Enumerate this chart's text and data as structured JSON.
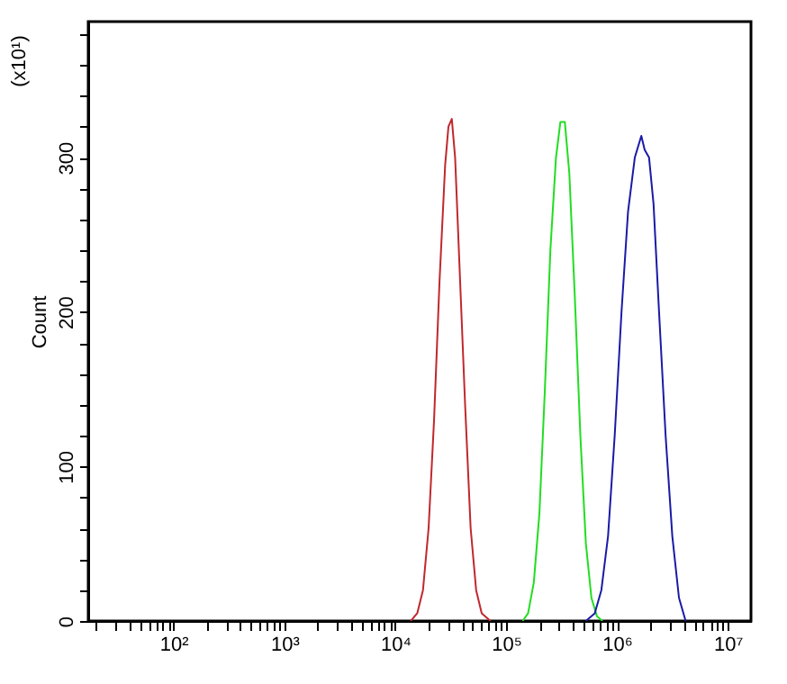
{
  "chart_data": {
    "type": "line",
    "ylabel": "Count",
    "annotations": [
      "(x10¹)"
    ],
    "grid": false,
    "log": "x",
    "marker": "none",
    "line_style": "solid",
    "xlim": [
      17,
      16200000
    ],
    "ylim": [
      0,
      388
    ],
    "xticks": [
      {
        "value": 20,
        "label": null
      },
      {
        "value": 30,
        "label": null
      },
      {
        "value": 40,
        "label": null
      },
      {
        "value": 50,
        "label": null
      },
      {
        "value": 60,
        "label": null
      },
      {
        "value": 70,
        "label": null
      },
      {
        "value": 80,
        "label": null
      },
      {
        "value": 90,
        "label": null
      },
      {
        "value": 100,
        "label": "10²"
      },
      {
        "value": 200,
        "label": null
      },
      {
        "value": 300,
        "label": null
      },
      {
        "value": 400,
        "label": null
      },
      {
        "value": 500,
        "label": null
      },
      {
        "value": 600,
        "label": null
      },
      {
        "value": 700,
        "label": null
      },
      {
        "value": 800,
        "label": null
      },
      {
        "value": 900,
        "label": null
      },
      {
        "value": 1000,
        "label": "10³"
      },
      {
        "value": 2000,
        "label": null
      },
      {
        "value": 3000,
        "label": null
      },
      {
        "value": 4000,
        "label": null
      },
      {
        "value": 5000,
        "label": null
      },
      {
        "value": 6000,
        "label": null
      },
      {
        "value": 7000,
        "label": null
      },
      {
        "value": 8000,
        "label": null
      },
      {
        "value": 9000,
        "label": null
      },
      {
        "value": 10000,
        "label": "10⁴"
      },
      {
        "value": 20000,
        "label": null
      },
      {
        "value": 30000,
        "label": null
      },
      {
        "value": 40000,
        "label": null
      },
      {
        "value": 50000,
        "label": null
      },
      {
        "value": 60000,
        "label": null
      },
      {
        "value": 70000,
        "label": null
      },
      {
        "value": 80000,
        "label": null
      },
      {
        "value": 90000,
        "label": null
      },
      {
        "value": 100000,
        "label": "10⁵"
      },
      {
        "value": 200000,
        "label": null
      },
      {
        "value": 300000,
        "label": null
      },
      {
        "value": 400000,
        "label": null
      },
      {
        "value": 500000,
        "label": null
      },
      {
        "value": 600000,
        "label": null
      },
      {
        "value": 700000,
        "label": null
      },
      {
        "value": 800000,
        "label": null
      },
      {
        "value": 900000,
        "label": null
      },
      {
        "value": 1000000,
        "label": "10⁶"
      },
      {
        "value": 2000000,
        "label": null
      },
      {
        "value": 3000000,
        "label": null
      },
      {
        "value": 4000000,
        "label": null
      },
      {
        "value": 5000000,
        "label": null
      },
      {
        "value": 6000000,
        "label": null
      },
      {
        "value": 7000000,
        "label": null
      },
      {
        "value": 8000000,
        "label": null
      },
      {
        "value": 9000000,
        "label": null
      },
      {
        "value": 10000000,
        "label": "10⁷"
      }
    ],
    "yticks": [
      0,
      {
        "value": 20,
        "label": null
      },
      {
        "value": 40,
        "label": null
      },
      {
        "value": 60,
        "label": null
      },
      {
        "value": 80,
        "label": null
      },
      100,
      {
        "value": 120,
        "label": null
      },
      {
        "value": 140,
        "label": null
      },
      {
        "value": 160,
        "label": null
      },
      {
        "value": 180,
        "label": null
      },
      200,
      {
        "value": 220,
        "label": null
      },
      {
        "value": 240,
        "label": null
      },
      {
        "value": 260,
        "label": null
      },
      {
        "value": 280,
        "label": null
      },
      300,
      {
        "value": 320,
        "label": null
      },
      {
        "value": 340,
        "label": null
      },
      {
        "value": 360,
        "label": null
      },
      {
        "value": 380,
        "label": null
      }
    ],
    "series": [
      {
        "color": "#c0282d",
        "x": [
          13800,
          15800,
          17800,
          20000,
          22400,
          25100,
          28200,
          30200,
          32400,
          34700,
          38000,
          42700,
          47900,
          53700,
          60300,
          72400
        ],
        "values": [
          0,
          5,
          20,
          60,
          130,
          220,
          295,
          320,
          325,
          300,
          230,
          140,
          60,
          20,
          5,
          0
        ]
      },
      {
        "color": "#22dd22",
        "x": [
          141000,
          158000,
          178000,
          200000,
          224000,
          251000,
          282000,
          309000,
          339000,
          372000,
          417000,
          468000,
          525000,
          589000,
          661000,
          741000
        ],
        "values": [
          0,
          5,
          25,
          70,
          150,
          240,
          300,
          323,
          323,
          290,
          210,
          120,
          50,
          15,
          3,
          0
        ]
      },
      {
        "color": "#1a1aa8",
        "x": [
          525000,
          631000,
          724000,
          832000,
          955000,
          1100000,
          1260000,
          1450000,
          1660000,
          1780000,
          1950000,
          2140000,
          2400000,
          2750000,
          3160000,
          3630000,
          4170000
        ],
        "values": [
          0,
          5,
          20,
          55,
          120,
          200,
          265,
          300,
          314,
          305,
          300,
          270,
          200,
          120,
          55,
          15,
          0
        ]
      }
    ]
  }
}
